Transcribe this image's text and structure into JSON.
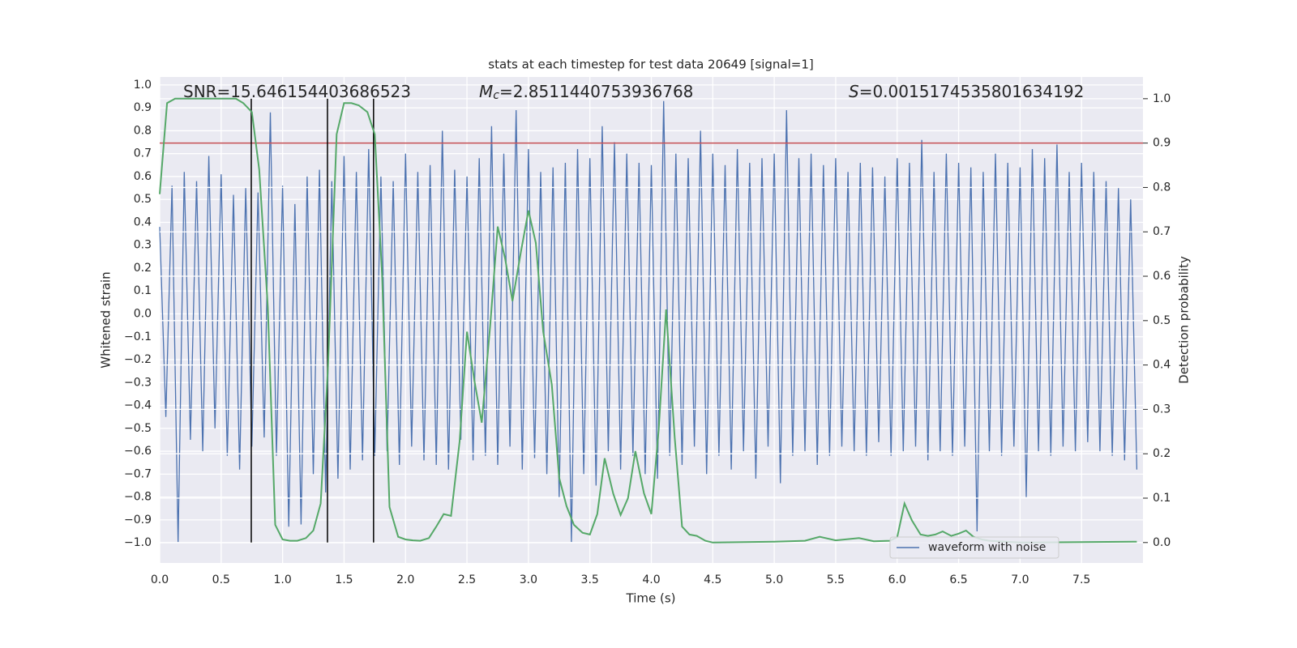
{
  "chart_data": {
    "type": "line",
    "title": "stats at each timestep for test data 20649 [signal=1]",
    "xlabel": "Time (s)",
    "ylabel": "Whitened strain",
    "y2label": "Detection probability",
    "annotations": [
      {
        "text": "SNR=15.646154403686523"
      },
      {
        "symbol": "M",
        "subscript": "c",
        "text": "=2.8511440753936768"
      },
      {
        "symbol": "S",
        "text": "=0.0015174535801634192"
      }
    ],
    "xlim": [
      0,
      8
    ],
    "ylim": [
      -1.088,
      1.035
    ],
    "y2lim": [
      -0.046,
      1.049
    ],
    "xticks": [
      {
        "value": 0,
        "label": "0.0"
      },
      0.5,
      {
        "value": 1,
        "label": "1.0"
      },
      1.5,
      {
        "value": 2,
        "label": "2.0"
      },
      2.5,
      {
        "value": 3,
        "label": "3.0"
      },
      3.5,
      {
        "value": 4,
        "label": "4.0"
      },
      4.5,
      {
        "value": 5,
        "label": "5.0"
      },
      5.5,
      {
        "value": 6,
        "label": "6.0"
      },
      6.5,
      {
        "value": 7,
        "label": "7.0"
      },
      7.5
    ],
    "yticks": [
      {
        "value": -1,
        "label": "−1.0"
      },
      {
        "value": -0.9,
        "label": "−0.9"
      },
      {
        "value": -0.8,
        "label": "−0.8"
      },
      {
        "value": -0.7,
        "label": "−0.7"
      },
      {
        "value": -0.6,
        "label": "−0.6"
      },
      {
        "value": -0.5,
        "label": "−0.5"
      },
      {
        "value": -0.4,
        "label": "−0.4"
      },
      {
        "value": -0.3,
        "label": "−0.3"
      },
      {
        "value": -0.2,
        "label": "−0.2"
      },
      {
        "value": -0.1,
        "label": "−0.1"
      },
      {
        "value": 0,
        "label": "0.0"
      },
      0.1,
      0.2,
      0.3,
      0.4,
      0.5,
      0.6,
      0.7,
      0.8,
      0.9,
      {
        "value": 1,
        "label": "1.0"
      }
    ],
    "y2ticks": [
      {
        "value": 0,
        "label": "0.0"
      },
      0.1,
      0.2,
      0.3,
      0.4,
      0.5,
      0.6,
      0.7,
      0.8,
      0.9,
      {
        "value": 1,
        "label": "1.0"
      }
    ],
    "grid": true,
    "legend": "lower right",
    "series": [
      {
        "name": "waveform with noise",
        "color": "#4c72b0",
        "x": [
          0,
          0.05,
          0.1,
          0.15,
          0.2,
          0.25,
          0.3,
          0.35,
          0.4,
          0.45,
          0.5,
          0.55,
          0.6,
          0.65,
          0.7,
          0.75,
          0.8,
          0.85,
          0.9,
          0.95,
          1,
          1.05,
          1.1,
          1.15,
          1.2,
          1.25,
          1.3,
          1.35,
          1.4,
          1.45,
          1.5,
          1.55,
          1.6,
          1.65,
          1.7,
          1.75,
          1.8,
          1.85,
          1.9,
          1.95,
          2,
          2.05,
          2.1,
          2.15,
          2.2,
          2.25,
          2.3,
          2.35,
          2.4,
          2.45,
          2.5,
          2.55,
          2.6,
          2.65,
          2.7,
          2.75,
          2.8,
          2.85,
          2.9,
          2.95,
          3,
          3.05,
          3.1,
          3.15,
          3.2,
          3.25,
          3.3,
          3.35,
          3.4,
          3.45,
          3.5,
          3.55,
          3.6,
          3.65,
          3.7,
          3.75,
          3.8,
          3.85,
          3.9,
          3.95,
          4,
          4.05,
          4.1,
          4.15,
          4.2,
          4.25,
          4.3,
          4.35,
          4.4,
          4.45,
          4.5,
          4.55,
          4.6,
          4.65,
          4.7,
          4.75,
          4.8,
          4.85,
          4.9,
          4.95,
          5,
          5.05,
          5.1,
          5.15,
          5.2,
          5.25,
          5.3,
          5.35,
          5.4,
          5.45,
          5.5,
          5.55,
          5.6,
          5.65,
          5.7,
          5.75,
          5.8,
          5.85,
          5.9,
          5.95,
          6,
          6.05,
          6.1,
          6.15,
          6.2,
          6.25,
          6.3,
          6.35,
          6.4,
          6.45,
          6.5,
          6.55,
          6.6,
          6.65,
          6.7,
          6.75,
          6.8,
          6.85,
          6.9,
          6.95,
          7,
          7.05,
          7.1,
          7.15,
          7.2,
          7.25,
          7.3,
          7.35,
          7.4,
          7.45,
          7.5,
          7.55,
          7.6,
          7.65,
          7.7,
          7.75,
          7.8,
          7.85,
          7.9,
          7.95
        ],
        "values": [
          0.38,
          -0.45,
          0.56,
          -1.0,
          0.62,
          -0.55,
          0.58,
          -0.6,
          0.69,
          -0.5,
          0.61,
          -0.62,
          0.52,
          -0.68,
          0.55,
          -0.58,
          0.53,
          -0.54,
          0.88,
          -0.62,
          0.56,
          -0.93,
          0.48,
          -0.92,
          0.6,
          -0.7,
          0.63,
          -0.78,
          0.58,
          -0.72,
          0.69,
          -0.68,
          0.62,
          -0.64,
          0.72,
          -0.62,
          0.6,
          -0.6,
          0.58,
          -0.66,
          0.7,
          -0.58,
          0.62,
          -0.64,
          0.65,
          -0.66,
          0.8,
          -0.68,
          0.63,
          -0.55,
          0.6,
          -0.64,
          0.68,
          -0.62,
          0.82,
          -0.66,
          0.7,
          -0.58,
          0.89,
          -0.68,
          0.72,
          -0.63,
          0.62,
          -0.7,
          0.64,
          -0.8,
          0.66,
          -1.0,
          0.72,
          -0.7,
          0.68,
          -0.75,
          0.82,
          -0.6,
          0.75,
          -0.68,
          0.7,
          -0.62,
          0.66,
          -0.7,
          0.65,
          -0.72,
          0.93,
          -0.62,
          0.7,
          -0.66,
          0.68,
          -0.58,
          0.8,
          -0.7,
          0.7,
          -0.62,
          0.65,
          -0.68,
          0.72,
          -0.6,
          0.66,
          -0.72,
          0.68,
          -0.58,
          0.7,
          -0.74,
          0.89,
          -0.62,
          0.68,
          -0.6,
          0.7,
          -0.66,
          0.65,
          -0.62,
          0.68,
          -0.58,
          0.62,
          -0.6,
          0.66,
          -0.62,
          0.64,
          -0.56,
          0.6,
          -0.62,
          0.68,
          -0.6,
          0.66,
          -0.58,
          0.76,
          -0.64,
          0.62,
          -0.6,
          0.7,
          -0.62,
          0.66,
          -0.58,
          0.64,
          -0.95,
          0.62,
          -0.6,
          0.7,
          -0.62,
          0.66,
          -0.58,
          0.64,
          -0.8,
          0.72,
          -0.6,
          0.68,
          -0.62,
          0.74,
          -0.58,
          0.62,
          -0.6,
          0.66,
          -0.56,
          0.62,
          -0.6,
          0.58,
          -0.62,
          0.55,
          -0.64,
          0.5,
          -0.68
        ]
      },
      {
        "color": "#55a868",
        "axis": "y2",
        "x": [
          0,
          0.06,
          0.125,
          0.19,
          0.25,
          0.31,
          0.37,
          0.44,
          0.5,
          0.56,
          0.62,
          0.68,
          0.75,
          0.81,
          0.88,
          0.94,
          1,
          1.06,
          1.12,
          1.19,
          1.25,
          1.31,
          1.37,
          1.44,
          1.5,
          1.56,
          1.62,
          1.69,
          1.75,
          1.81,
          1.87,
          1.94,
          2,
          2.06,
          2.12,
          2.19,
          2.25,
          2.31,
          2.37,
          2.44,
          2.5,
          2.56,
          2.62,
          2.69,
          2.75,
          2.81,
          2.87,
          2.94,
          3,
          3.06,
          3.12,
          3.19,
          3.25,
          3.31,
          3.37,
          3.44,
          3.5,
          3.56,
          3.62,
          3.69,
          3.75,
          3.81,
          3.87,
          3.94,
          4,
          4.06,
          4.12,
          4.19,
          4.25,
          4.31,
          4.37,
          4.44,
          4.5,
          4.75,
          5,
          5.25,
          5.37,
          5.5,
          5.69,
          5.81,
          5.94,
          6,
          6.06,
          6.12,
          6.19,
          6.25,
          6.31,
          6.37,
          6.44,
          6.5,
          6.56,
          6.62,
          6.69,
          6.75,
          7,
          7.5,
          7.95
        ],
        "values": [
          0.785,
          0.99,
          1.0,
          1.0,
          1.0,
          1.0,
          1.0,
          1.0,
          1.0,
          1.0,
          1.0,
          0.99,
          0.97,
          0.84,
          0.53,
          0.04,
          0.007,
          0.004,
          0.004,
          0.01,
          0.027,
          0.088,
          0.4,
          0.92,
          0.99,
          0.99,
          0.985,
          0.97,
          0.92,
          0.6,
          0.08,
          0.013,
          0.007,
          0.005,
          0.004,
          0.01,
          0.036,
          0.064,
          0.06,
          0.228,
          0.475,
          0.365,
          0.27,
          0.493,
          0.712,
          0.64,
          0.544,
          0.657,
          0.748,
          0.675,
          0.475,
          0.356,
          0.146,
          0.082,
          0.04,
          0.022,
          0.018,
          0.064,
          0.19,
          0.11,
          0.062,
          0.1,
          0.206,
          0.111,
          0.064,
          0.255,
          0.525,
          0.237,
          0.036,
          0.018,
          0.015,
          0.004,
          0.0,
          0.001,
          0.002,
          0.004,
          0.013,
          0.005,
          0.01,
          0.003,
          0.004,
          0.012,
          0.088,
          0.05,
          0.018,
          0.015,
          0.018,
          0.025,
          0.015,
          0.02,
          0.027,
          0.013,
          0.007,
          0.004,
          0.0,
          0.001,
          0.002
        ]
      }
    ],
    "threshold": {
      "value": 0.9,
      "axis": "y2",
      "color": "#c44e52"
    },
    "vlines": {
      "values": [
        0.745,
        1.365,
        1.74
      ],
      "color": "#000000"
    }
  }
}
